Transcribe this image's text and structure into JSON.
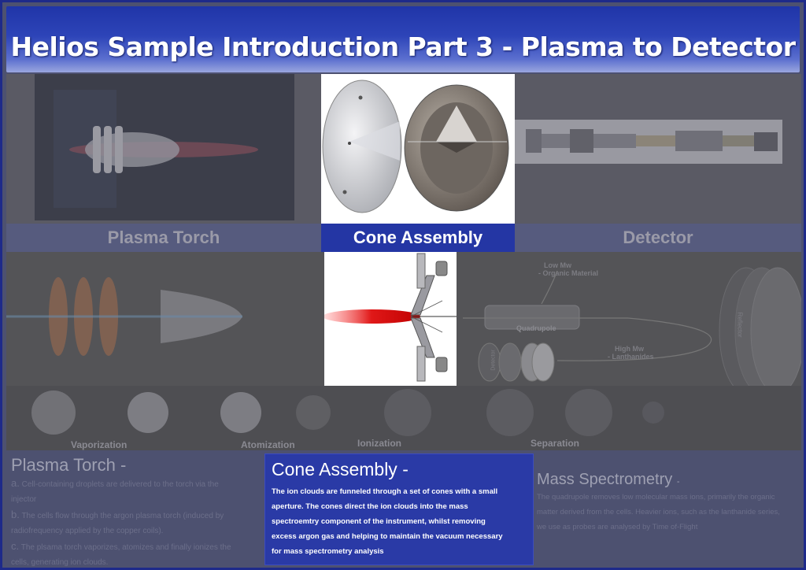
{
  "header": {
    "title": "Helios Sample Introduction Part 3 -  Plasma to Detector"
  },
  "sections": {
    "plasma_torch": "Plasma Torch",
    "cone_assembly": "Cone Assembly",
    "detector": "Detector"
  },
  "schematic": {
    "low_mw": "Low Mw",
    "low_mw_sub": "- Organic Material",
    "quadrupole": "Quadrupole",
    "high_mw": "High Mw",
    "high_mw_sub": "- Lanthanides",
    "detector": "Detector",
    "reflector": "Reflector"
  },
  "process": {
    "vaporization": "Vaporization",
    "atomization": "Atomization",
    "ionization": "Ionization",
    "separation": "Separation"
  },
  "panels": {
    "torch": {
      "title": "Plasma Torch -",
      "lines": [
        {
          "letter": "a.",
          "text": "Cell-containing droplets are delivered to the torch via the"
        },
        {
          "letter": "",
          "text": "injector"
        },
        {
          "letter": "b.",
          "text": "The cells flow through the argon plasma torch (induced by"
        },
        {
          "letter": "",
          "text": "radiofrequency applied by the copper coils)."
        },
        {
          "letter": "c.",
          "text": "The plsama torch vaporizes, atomizes and finally ionizes the"
        },
        {
          "letter": "",
          "text": "cells, generating ion clouds."
        }
      ]
    },
    "cone": {
      "title": "Cone Assembly -",
      "lines": [
        "The ion clouds are funneled through a set of cones with a small",
        "aperture. The cones direct the ion clouds into the mass",
        "spectroemtry component of the instrument, whilst removing",
        "excess argon gas and helping to maintain the vacuum necessary",
        "for mass spectrometry analysis"
      ]
    },
    "mass_spec": {
      "title": "Mass Spectrometry",
      "title_suffix": "-",
      "lines": [
        "The quadrupole removes low molecular mass ions, primarily the organic",
        "matter derived from the cells. Heavier  ions, such as the lanthanide series,",
        "we use as probes are analysed by Time of-Flight"
      ]
    }
  }
}
